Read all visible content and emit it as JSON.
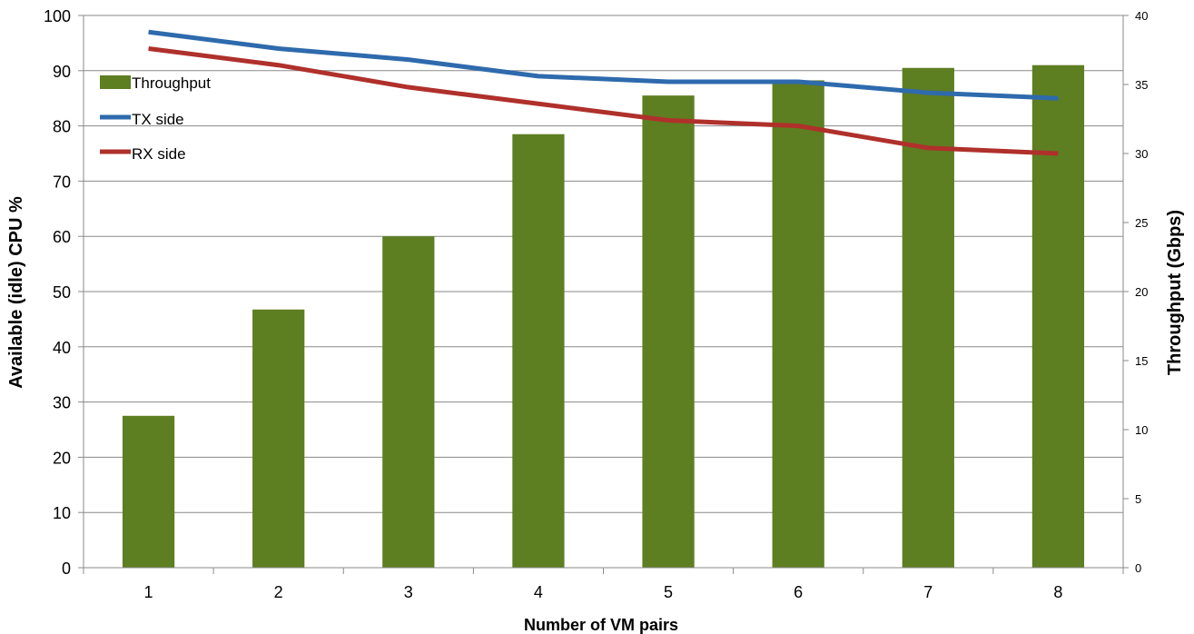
{
  "chart_data": {
    "type": "bar",
    "categories": [
      "1",
      "2",
      "3",
      "4",
      "5",
      "6",
      "7",
      "8"
    ],
    "xlabel": "Number of VM pairs",
    "ylabel": "Available (idle) CPU %",
    "y2label": "Throughput (Gbps)",
    "ylim": [
      0,
      100
    ],
    "y2lim": [
      0,
      40
    ],
    "yticks": [
      "0",
      "10",
      "20",
      "30",
      "40",
      "50",
      "60",
      "70",
      "80",
      "90",
      "100"
    ],
    "y2ticks": [
      "0",
      "5",
      "10",
      "15",
      "20",
      "25",
      "30",
      "35",
      "40"
    ],
    "grid": true,
    "legend_position": "top-left",
    "series": [
      {
        "name": "Throughput",
        "type": "bar",
        "axis": "right",
        "color": "#5e7e22",
        "values": [
          11.0,
          18.7,
          24.0,
          31.4,
          34.2,
          35.3,
          36.2,
          36.4
        ]
      },
      {
        "name": "TX side",
        "type": "line",
        "axis": "left",
        "color": "#2e6aad",
        "values": [
          97,
          94,
          92,
          89,
          88,
          88,
          86,
          85
        ]
      },
      {
        "name": "RX side",
        "type": "line",
        "axis": "left",
        "color": "#b0302b",
        "values": [
          94,
          91,
          87,
          84,
          81,
          80,
          76,
          75
        ]
      }
    ]
  }
}
